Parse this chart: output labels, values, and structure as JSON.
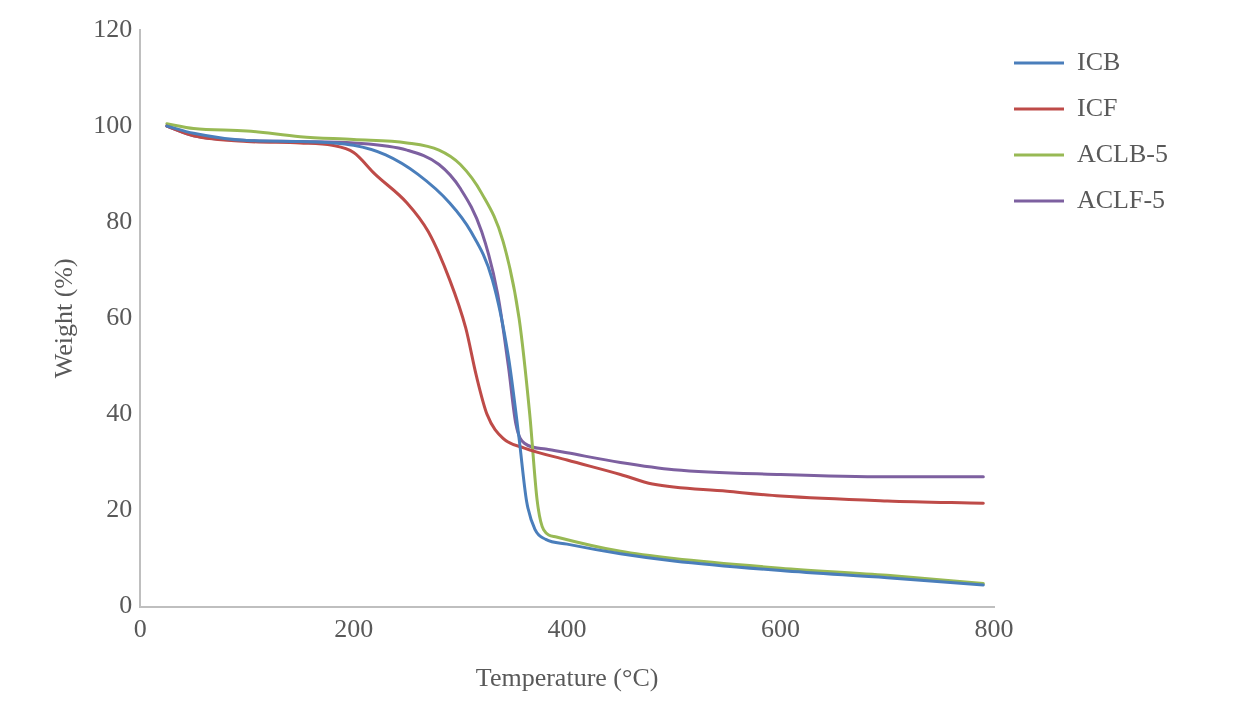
{
  "chart_data": {
    "type": "line",
    "xlabel": "Temperature (°C)",
    "ylabel": "Weight (%)",
    "xlim": [
      0,
      800
    ],
    "xticks": [
      0,
      200,
      400,
      600,
      800
    ],
    "ylim": [
      0,
      120
    ],
    "yticks": [
      0,
      20,
      40,
      60,
      80,
      100,
      120
    ],
    "grid": false,
    "legend": "right",
    "marker": "none",
    "line_style": "solid",
    "series": [
      {
        "name": "ICB",
        "color": "#4a7ebb",
        "x": [
          25,
          50,
          100,
          150,
          200,
          230,
          260,
          290,
          310,
          330,
          345,
          355,
          362,
          370,
          380,
          400,
          450,
          500,
          600,
          700,
          790
        ],
        "values": [
          100,
          98.5,
          97,
          96.8,
          96,
          94,
          90,
          84,
          78,
          68,
          52,
          35,
          22,
          16,
          14,
          13,
          11,
          9.5,
          7.5,
          6,
          4.5
        ]
      },
      {
        "name": "ICF",
        "color": "#be4b48",
        "x": [
          25,
          50,
          100,
          150,
          180,
          200,
          220,
          250,
          270,
          290,
          305,
          315,
          325,
          340,
          360,
          400,
          450,
          480,
          550,
          600,
          700,
          790
        ],
        "values": [
          100,
          98,
          96.8,
          96.5,
          96,
          94.5,
          90,
          84,
          78,
          68,
          58,
          48,
          40,
          35,
          33,
          30.5,
          27.5,
          25.5,
          24,
          23,
          22,
          21.5
        ]
      },
      {
        "name": "ACLB-5",
        "color": "#98b954",
        "x": [
          25,
          50,
          100,
          150,
          200,
          250,
          280,
          300,
          320,
          340,
          355,
          365,
          372,
          378,
          390,
          450,
          500,
          600,
          700,
          790
        ],
        "values": [
          100.5,
          99.5,
          99,
          97.8,
          97.2,
          96.5,
          95,
          92,
          86,
          76,
          60,
          40,
          22,
          16,
          14.5,
          11.5,
          10,
          8,
          6.5,
          4.8
        ]
      },
      {
        "name": "ACLF-5",
        "color": "#7d60a0",
        "x": [
          25,
          50,
          100,
          150,
          200,
          250,
          280,
          300,
          320,
          335,
          345,
          352,
          360,
          380,
          400,
          450,
          500,
          600,
          700,
          790
        ],
        "values": [
          100,
          98,
          97,
          96.8,
          96.5,
          95,
          92,
          87,
          78,
          65,
          50,
          38,
          34,
          32.8,
          32,
          30,
          28.5,
          27.5,
          27,
          27
        ]
      }
    ]
  }
}
